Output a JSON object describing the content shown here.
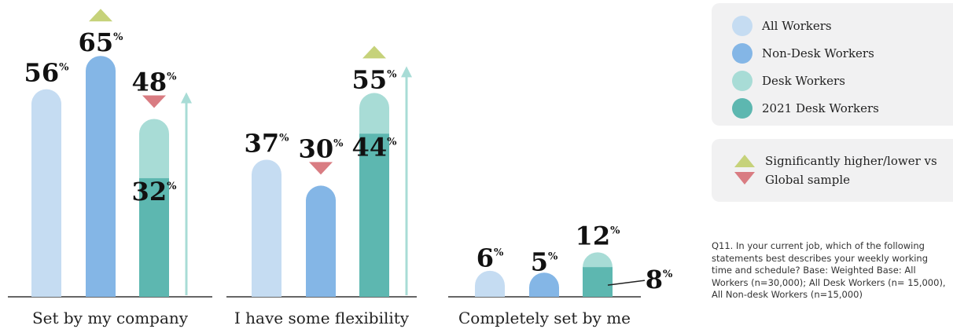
{
  "colors": {
    "all_workers": "#c5dcf2",
    "non_desk_workers": "#84b6e6",
    "desk_workers": "#a8dcd6",
    "desk_workers_2021": "#5db7b0",
    "higher": "#c6d27a",
    "lower": "#d97c82",
    "arrow": "#a8dcd6"
  },
  "chart_data": {
    "type": "bar",
    "categories": [
      "Set by my company",
      "I have some flexibility",
      "Completely set by me"
    ],
    "series": [
      {
        "name": "All Workers",
        "values": [
          56,
          37,
          6
        ]
      },
      {
        "name": "Non-Desk Workers",
        "values": [
          65,
          30,
          5
        ]
      },
      {
        "name": "Desk Workers",
        "values": [
          48,
          55,
          12
        ]
      },
      {
        "name": "2021 Desk Workers",
        "values": [
          32,
          44,
          8
        ]
      }
    ],
    "significance": [
      {
        "category": "Set by my company",
        "series": "Non-Desk Workers",
        "direction": "higher"
      },
      {
        "category": "Set by my company",
        "series": "Desk Workers",
        "direction": "lower"
      },
      {
        "category": "I have some flexibility",
        "series": "Non-Desk Workers",
        "direction": "lower"
      },
      {
        "category": "I have some flexibility",
        "series": "Desk Workers",
        "direction": "higher"
      }
    ],
    "ylim": [
      0,
      70
    ],
    "grid": false,
    "legend_placement": "right",
    "value_suffix": "%"
  },
  "legend": {
    "items": [
      {
        "label": "All Workers",
        "color": "#c5dcf2"
      },
      {
        "label": "Non-Desk Workers",
        "color": "#84b6e6"
      },
      {
        "label": "Desk Workers",
        "color": "#a8dcd6"
      },
      {
        "label": "2021 Desk Workers",
        "color": "#5db7b0"
      }
    ],
    "significance_text": "Significantly higher/lower vs Global sample"
  },
  "footnote": "Q11. In your current job, which of the following statements best describes your weekly working time and schedule? Base: Weighted Base: All Workers (n=30,000); All Desk Workers (n= 15,000), All Non-desk Workers (n=15,000)"
}
